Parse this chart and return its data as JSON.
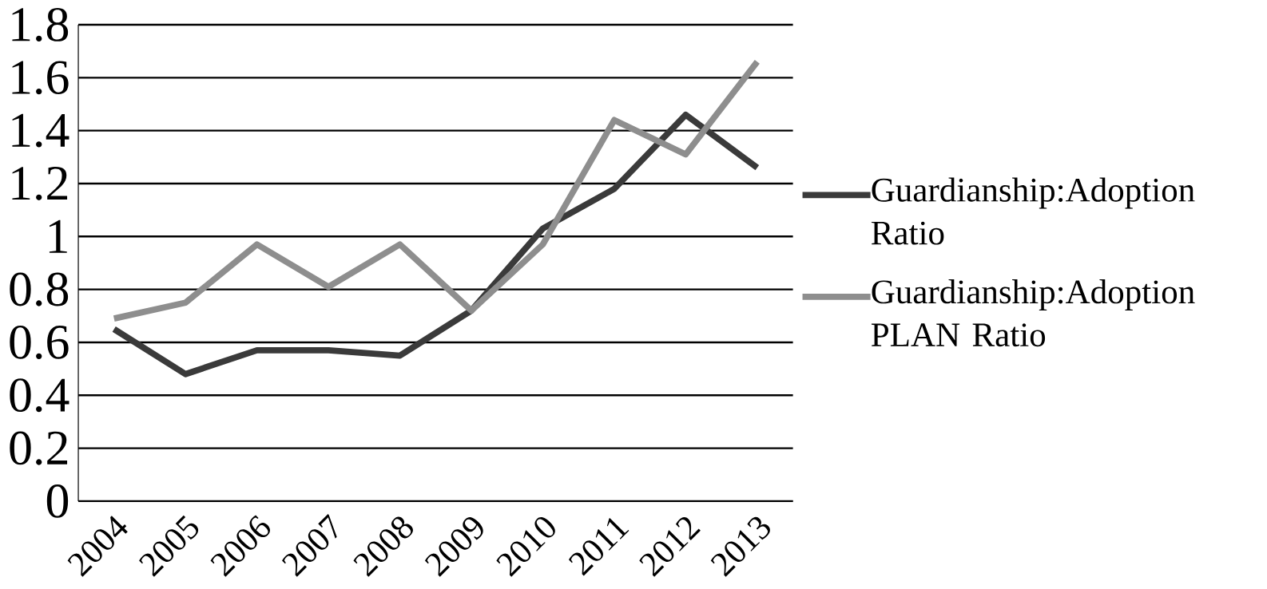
{
  "chart_data": {
    "type": "line",
    "categories": [
      "2004",
      "2005",
      "2006",
      "2007",
      "2008",
      "2009",
      "2010",
      "2011",
      "2012",
      "2013"
    ],
    "series": [
      {
        "name": "Guardianship:Adoption Ratio",
        "color": "#3a3a3a",
        "values": [
          0.65,
          0.48,
          0.57,
          0.57,
          0.55,
          0.72,
          1.03,
          1.18,
          1.46,
          1.26
        ]
      },
      {
        "name": "Guardianship:Adoption PLAN Ratio",
        "color": "#8e8e8e",
        "values": [
          0.69,
          0.75,
          0.97,
          0.81,
          0.97,
          0.72,
          0.97,
          1.44,
          1.31,
          1.66
        ]
      }
    ],
    "ylim": [
      0,
      1.8
    ],
    "yticks": [
      0,
      0.2,
      0.4,
      0.6,
      0.8,
      1,
      1.2,
      1.4,
      1.6,
      1.8
    ],
    "grid": "y",
    "legend": "right",
    "marker": "none",
    "line_style": "solid"
  }
}
